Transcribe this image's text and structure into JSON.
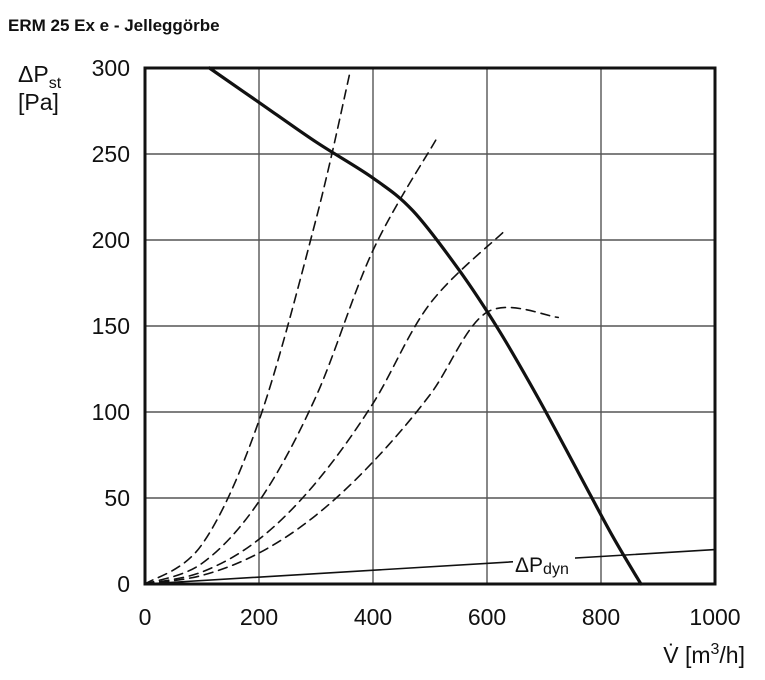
{
  "title": "ERM 25 Ex e - Jelleggörbe",
  "chart_data": {
    "type": "line",
    "title": "ERM 25 Ex e - Jelleggörbe",
    "xlabel": {
      "main": "V̇ [m",
      "sup": "3",
      "tail": "/h]"
    },
    "ylabel": {
      "delta_p": "ΔP",
      "sub": "st",
      "unit": "[Pa]"
    },
    "xlim": [
      0,
      1000
    ],
    "ylim": [
      0,
      300
    ],
    "x_ticks": [
      "0",
      "200",
      "400",
      "600",
      "800",
      "1000"
    ],
    "y_ticks": [
      "0",
      "50",
      "100",
      "150",
      "200",
      "250",
      "300"
    ],
    "grid": true,
    "series": [
      {
        "name": "",
        "style": "solid-thick",
        "points": [
          [
            113,
            300
          ],
          [
            200,
            280
          ],
          [
            300,
            257
          ],
          [
            400,
            236
          ],
          [
            470,
            217
          ],
          [
            550,
            183
          ],
          [
            620,
            148
          ],
          [
            690,
            108
          ],
          [
            760,
            65
          ],
          [
            820,
            28
          ],
          [
            870,
            0
          ]
        ]
      },
      {
        "name": "ΔPdyn",
        "style": "solid-thin",
        "points": [
          [
            0,
            0
          ],
          [
            1000,
            20
          ]
        ]
      },
      {
        "name": "",
        "style": "dashed",
        "points": [
          [
            0,
            0
          ],
          [
            100,
            23
          ],
          [
            200,
            95
          ],
          [
            300,
            212
          ],
          [
            360,
            298
          ]
        ]
      },
      {
        "name": "",
        "style": "dashed",
        "points": [
          [
            0,
            0
          ],
          [
            100,
            12
          ],
          [
            200,
            48
          ],
          [
            300,
            109
          ],
          [
            400,
            194
          ],
          [
            510,
            258
          ]
        ]
      },
      {
        "name": "",
        "style": "dashed",
        "points": [
          [
            0,
            0
          ],
          [
            100,
            7
          ],
          [
            200,
            26
          ],
          [
            300,
            59
          ],
          [
            400,
            105
          ],
          [
            500,
            163
          ],
          [
            630,
            205
          ]
        ]
      },
      {
        "name": "",
        "style": "dashed",
        "points": [
          [
            0,
            0
          ],
          [
            100,
            5
          ],
          [
            200,
            18
          ],
          [
            300,
            40
          ],
          [
            400,
            71
          ],
          [
            500,
            110
          ],
          [
            600,
            158
          ],
          [
            725,
            155
          ]
        ]
      }
    ],
    "annotations": [
      {
        "text": "ΔP",
        "sub": "dyn"
      }
    ]
  }
}
